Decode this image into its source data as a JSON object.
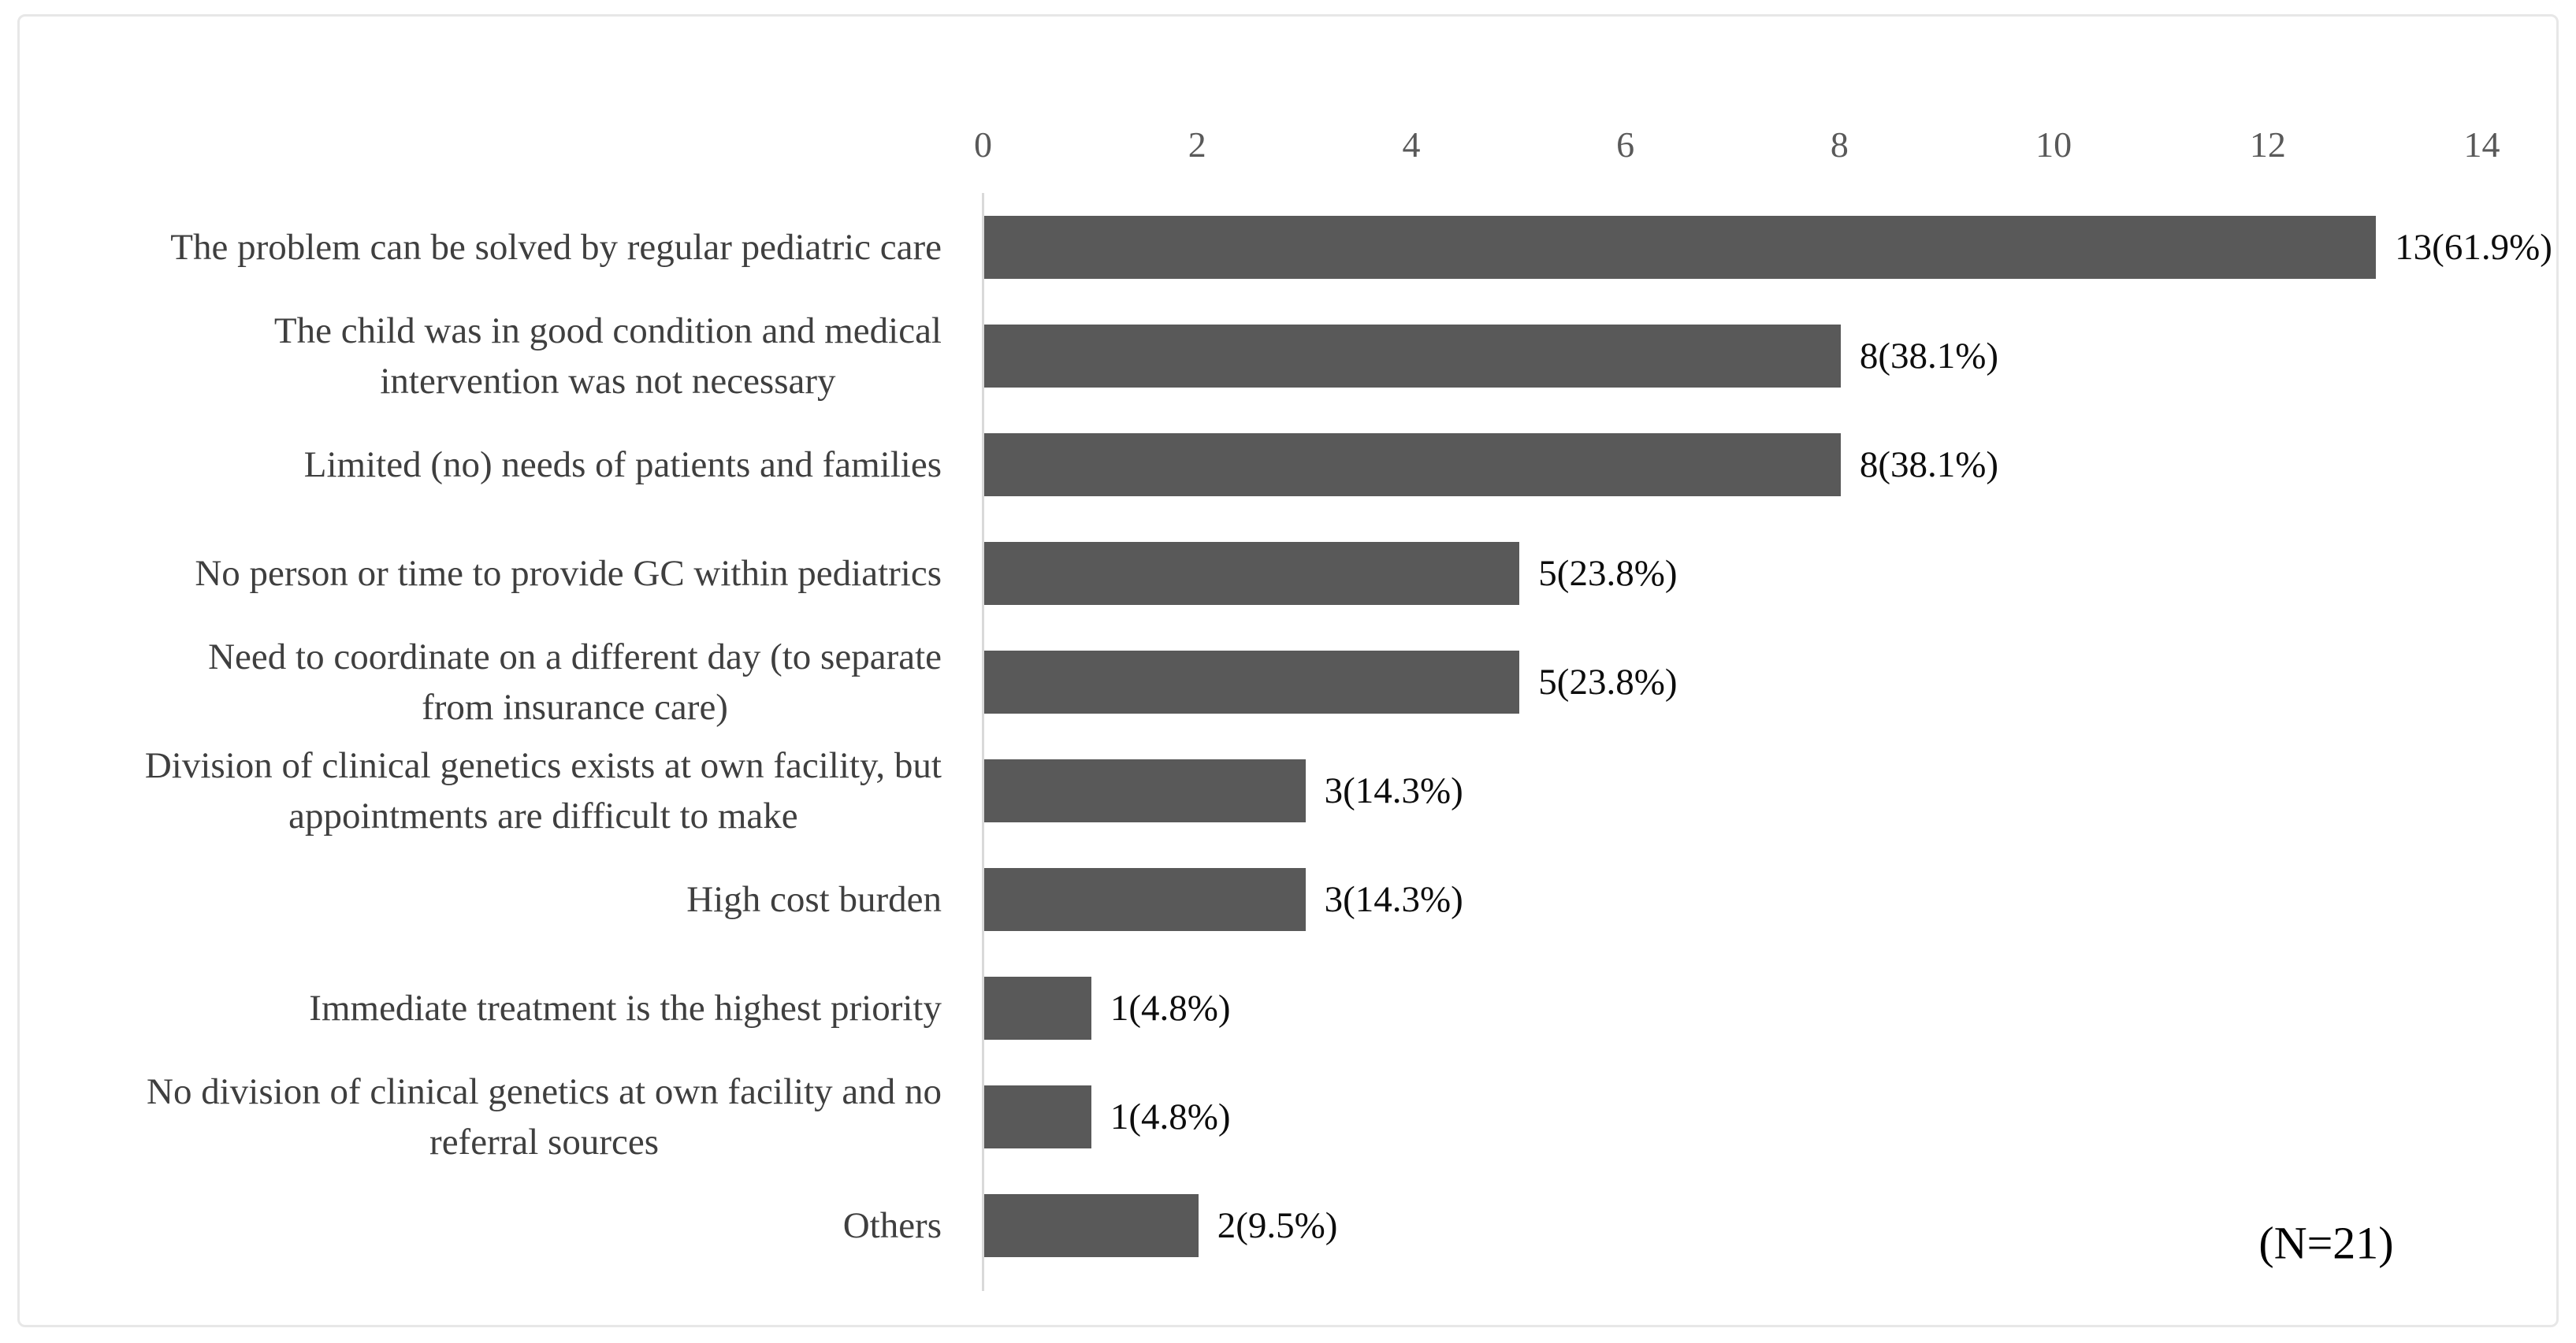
{
  "chart_data": {
    "type": "bar",
    "orientation": "horizontal",
    "title": "",
    "categories": [
      "The problem can be solved by regular pediatric care",
      "The child was in good condition and medical\nintervention was not necessary",
      "Limited (no) needs of patients and families",
      "No person or time to provide GC within pediatrics",
      "Need to coordinate on a different day (to separate\nfrom insurance care)",
      "Division of clinical genetics exists at own facility, but\nappointments are difficult to make",
      "High cost burden",
      "Immediate treatment is the highest priority",
      "No division of clinical genetics at own facility and no\nreferral sources",
      "Others"
    ],
    "values": [
      13,
      8,
      8,
      5,
      5,
      3,
      3,
      1,
      1,
      2
    ],
    "percentages": [
      61.9,
      38.1,
      38.1,
      23.8,
      23.8,
      14.3,
      14.3,
      4.8,
      4.8,
      9.5
    ],
    "data_labels": [
      "13(61.9%)",
      "8(38.1%)",
      "8(38.1%)",
      "5(23.8%)",
      "5(23.8%)",
      "3(14.3%)",
      "3(14.3%)",
      "1(4.8%)",
      "1(4.8%)",
      "2(9.5%)"
    ],
    "x_axis": {
      "position": "top",
      "min": 0,
      "max": 14,
      "ticks": [
        0,
        2,
        4,
        6,
        8,
        10,
        12,
        14
      ]
    },
    "annotation": "(N=21)",
    "sample_size": 21,
    "grid": false,
    "legend": null,
    "colors": {
      "bar": "#595959",
      "axis_line": "#d9d9d9",
      "tick_label": "#595959",
      "category_label": "#3f3f3f",
      "value_label": "#0d0d0d"
    }
  }
}
